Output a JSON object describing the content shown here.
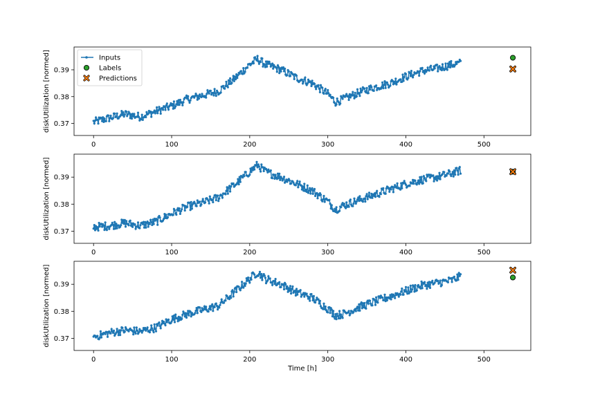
{
  "chart_data": [
    {
      "type": "line",
      "xlabel": "",
      "ylabel": "diskUtilization [normed]",
      "xlim": [
        -25,
        560
      ],
      "ylim": [
        0.3655,
        0.3985
      ],
      "xticks": [
        0,
        100,
        200,
        300,
        400,
        500
      ],
      "yticks": [
        0.37,
        0.38,
        0.39
      ],
      "legend": {
        "placement": "upper-left",
        "entries": [
          "Inputs",
          "Labels",
          "Predictions"
        ]
      },
      "series": [
        {
          "name": "Inputs",
          "kind": "line-markers",
          "color": "#1f77b4",
          "x": [
            0,
            20,
            40,
            60,
            80,
            100,
            120,
            140,
            160,
            180,
            200,
            210,
            220,
            240,
            260,
            280,
            300,
            310,
            320,
            340,
            360,
            380,
            400,
            420,
            440,
            460,
            470
          ],
          "y": [
            0.3705,
            0.372,
            0.3735,
            0.3725,
            0.3745,
            0.3765,
            0.379,
            0.3805,
            0.382,
            0.3865,
            0.392,
            0.394,
            0.392,
            0.39,
            0.387,
            0.385,
            0.381,
            0.378,
            0.379,
            0.3815,
            0.3835,
            0.385,
            0.3875,
            0.3895,
            0.3905,
            0.392,
            0.3925
          ],
          "noise": 0.0015
        },
        {
          "name": "Labels",
          "kind": "scatter",
          "color": "#2ca02c",
          "x": [
            537
          ],
          "y": [
            0.3945
          ]
        },
        {
          "name": "Predictions",
          "kind": "scatter-x",
          "color": "#ff7f0e",
          "x": [
            537
          ],
          "y": [
            0.3903
          ]
        }
      ]
    },
    {
      "type": "line",
      "xlabel": "",
      "ylabel": "diskUtilization [normed]",
      "xlim": [
        -25,
        560
      ],
      "ylim": [
        0.3655,
        0.3985
      ],
      "xticks": [
        0,
        100,
        200,
        300,
        400,
        500
      ],
      "yticks": [
        0.37,
        0.38,
        0.39
      ],
      "series": [
        {
          "name": "Inputs",
          "kind": "line-markers",
          "color": "#1f77b4",
          "x": [
            0,
            20,
            40,
            60,
            80,
            100,
            120,
            140,
            160,
            180,
            200,
            210,
            220,
            240,
            260,
            280,
            300,
            310,
            320,
            340,
            360,
            380,
            400,
            420,
            440,
            460,
            470
          ],
          "y": [
            0.3715,
            0.372,
            0.373,
            0.372,
            0.3735,
            0.3765,
            0.379,
            0.3805,
            0.3825,
            0.387,
            0.392,
            0.3945,
            0.392,
            0.39,
            0.3875,
            0.385,
            0.381,
            0.378,
            0.3795,
            0.3815,
            0.3835,
            0.3855,
            0.3875,
            0.389,
            0.39,
            0.3915,
            0.3925
          ],
          "noise": 0.0015
        },
        {
          "name": "Labels",
          "kind": "scatter",
          "color": "#2ca02c",
          "x": [
            537
          ],
          "y": [
            0.392
          ]
        },
        {
          "name": "Predictions",
          "kind": "scatter-x",
          "color": "#ff7f0e",
          "x": [
            537
          ],
          "y": [
            0.392
          ]
        }
      ]
    },
    {
      "type": "line",
      "xlabel": "Time [h]",
      "ylabel": "diskUtilization [normed]",
      "xlim": [
        -25,
        560
      ],
      "ylim": [
        0.3655,
        0.3985
      ],
      "xticks": [
        0,
        100,
        200,
        300,
        400,
        500
      ],
      "yticks": [
        0.37,
        0.38,
        0.39
      ],
      "series": [
        {
          "name": "Inputs",
          "kind": "line-markers",
          "color": "#1f77b4",
          "x": [
            0,
            20,
            40,
            60,
            80,
            100,
            120,
            140,
            160,
            180,
            200,
            210,
            220,
            240,
            260,
            280,
            300,
            310,
            320,
            340,
            360,
            380,
            400,
            420,
            440,
            460,
            470
          ],
          "y": [
            0.3705,
            0.372,
            0.373,
            0.3725,
            0.374,
            0.377,
            0.379,
            0.3805,
            0.382,
            0.387,
            0.392,
            0.3945,
            0.392,
            0.39,
            0.387,
            0.385,
            0.381,
            0.3785,
            0.379,
            0.3815,
            0.3835,
            0.3855,
            0.3875,
            0.3895,
            0.3905,
            0.3915,
            0.393
          ],
          "noise": 0.0015
        },
        {
          "name": "Labels",
          "kind": "scatter",
          "color": "#2ca02c",
          "x": [
            537
          ],
          "y": [
            0.3925
          ]
        },
        {
          "name": "Predictions",
          "kind": "scatter-x",
          "color": "#ff7f0e",
          "x": [
            537
          ],
          "y": [
            0.3952
          ]
        }
      ]
    }
  ]
}
